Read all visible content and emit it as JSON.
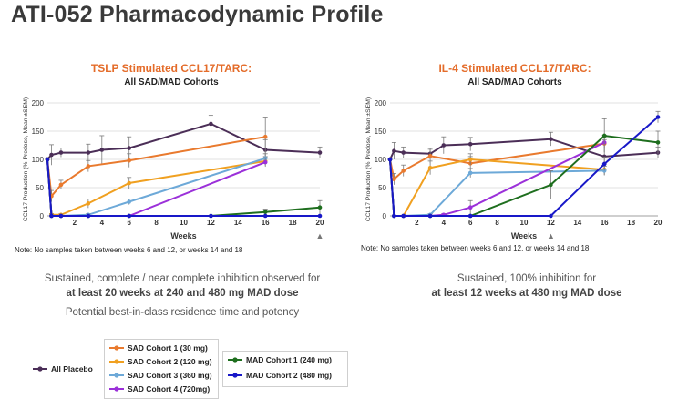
{
  "title": "ATI-052 Pharmacodynamic Profile",
  "colors": {
    "orange_title": "#e46c2a",
    "placebo": "#4b2e57",
    "sad1": "#e97a2e",
    "sad2": "#f0a020",
    "sad3": "#6da9d8",
    "sad4": "#9b30d9",
    "mad1": "#1e6e1e",
    "mad2": "#1818c8"
  },
  "left_panel": {
    "title": "TSLP Stimulated CCL17/TARC:",
    "subtitle": "All SAD/MAD Cohorts",
    "note": "Note: No samples taken between weeks 6 and 12, or weeks 14 and 18",
    "summary_line1": "Sustained, complete / near complete inhibition observed for",
    "summary_line2": "at least 20 weeks at 240 and 480 mg MAD dose",
    "summary_line3": "Potential best-in-class residence time and potency"
  },
  "right_panel": {
    "title": "IL-4 Stimulated CCL17/TARC:",
    "subtitle": "All SAD/MAD Cohorts",
    "note": "Note: No samples taken between weeks 6 and 12, or weeks 14 and 18",
    "summary_line1": "Sustained, 100% inhibition for",
    "summary_line2": "at least 12 weeks at 480 mg MAD dose"
  },
  "legend": {
    "placebo": "All Placebo",
    "sad1": "SAD Cohort 1 (30 mg)",
    "sad2": "SAD Cohort 2 (120 mg)",
    "sad3": "SAD Cohort 3 (360 mg)",
    "sad4": "SAD Cohort 4 (720mg)",
    "mad1": "MAD Cohort 1 (240 mg)",
    "mad2": "MAD Cohort 2 (480 mg)"
  },
  "chart_data": [
    {
      "type": "line",
      "title": "TSLP Stimulated CCL17/TARC:",
      "subtitle": "All SAD/MAD Cohorts",
      "xlabel": "Weeks",
      "ylabel": "CCL17 Production (% Predose, Mean ±SEM)",
      "xlim": [
        0,
        20
      ],
      "ylim": [
        0,
        200
      ],
      "xticks": [
        2,
        4,
        6,
        8,
        10,
        12,
        14,
        16,
        18,
        20
      ],
      "yticks": [
        0,
        50,
        100,
        150,
        200
      ],
      "x_marker_week": 20,
      "x_marker_symbol": "▲",
      "series": [
        {
          "name": "All Placebo",
          "key": "placebo",
          "x": [
            0,
            0.3,
            1,
            3,
            4,
            6,
            12,
            16,
            20
          ],
          "y": [
            100,
            108,
            112,
            112,
            117,
            120,
            163,
            117,
            112
          ],
          "err": [
            0,
            18,
            8,
            15,
            25,
            20,
            15,
            18,
            10
          ]
        },
        {
          "name": "SAD Cohort 1 (30 mg)",
          "key": "sad1",
          "x": [
            0,
            0.3,
            1,
            3,
            6,
            16
          ],
          "y": [
            100,
            35,
            55,
            88,
            98,
            140
          ],
          "err": [
            0,
            10,
            8,
            10,
            12,
            35
          ]
        },
        {
          "name": "SAD Cohort 2 (120 mg)",
          "key": "sad2",
          "x": [
            0,
            0.3,
            1,
            3,
            6,
            16
          ],
          "y": [
            100,
            2,
            2,
            22,
            58,
            97
          ],
          "err": [
            0,
            2,
            2,
            8,
            10,
            8
          ]
        },
        {
          "name": "SAD Cohort 3 (360 mg)",
          "key": "sad3",
          "x": [
            0,
            0.3,
            1,
            3,
            6,
            16
          ],
          "y": [
            100,
            0,
            0,
            2,
            25,
            102
          ],
          "err": [
            0,
            0,
            0,
            2,
            5,
            8
          ]
        },
        {
          "name": "SAD Cohort 4 (720mg)",
          "key": "sad4",
          "x": [
            0,
            0.3,
            1,
            3,
            6,
            16
          ],
          "y": [
            100,
            0,
            0,
            0,
            0,
            95
          ],
          "err": [
            0,
            0,
            0,
            0,
            0,
            8
          ]
        },
        {
          "name": "MAD Cohort 1 (240 mg)",
          "key": "mad1",
          "x": [
            0,
            0.3,
            1,
            3,
            6,
            12,
            16,
            20
          ],
          "y": [
            100,
            0,
            0,
            0,
            0,
            0,
            7,
            15
          ],
          "err": [
            0,
            0,
            0,
            0,
            0,
            0,
            5,
            12
          ]
        },
        {
          "name": "MAD Cohort 2 (480 mg)",
          "key": "mad2",
          "x": [
            0,
            0.3,
            1,
            3,
            6,
            12,
            16,
            20
          ],
          "y": [
            100,
            0,
            0,
            0,
            0,
            0,
            0,
            0
          ],
          "err": [
            0,
            0,
            0,
            0,
            0,
            0,
            0,
            0
          ]
        }
      ]
    },
    {
      "type": "line",
      "title": "IL-4 Stimulated CCL17/TARC:",
      "subtitle": "All SAD/MAD Cohorts",
      "xlabel": "Weeks",
      "ylabel": "CCL17 Production (% Predose, Mean ±SEM)",
      "xlim": [
        0,
        20
      ],
      "ylim": [
        0,
        200
      ],
      "xticks": [
        2,
        4,
        6,
        8,
        10,
        12,
        14,
        16,
        18,
        20
      ],
      "yticks": [
        0,
        50,
        100,
        150,
        200
      ],
      "x_marker_week": 12,
      "x_marker_symbol": "▲",
      "series": [
        {
          "name": "All Placebo",
          "key": "placebo",
          "x": [
            0,
            0.3,
            1,
            3,
            4,
            6,
            12,
            16,
            20
          ],
          "y": [
            100,
            115,
            112,
            110,
            125,
            127,
            136,
            105,
            112
          ],
          "err": [
            0,
            15,
            10,
            10,
            15,
            12,
            12,
            30,
            10
          ]
        },
        {
          "name": "SAD Cohort 1 (30 mg)",
          "key": "sad1",
          "x": [
            0,
            0.3,
            1,
            3,
            6,
            16
          ],
          "y": [
            100,
            65,
            80,
            106,
            93,
            128
          ],
          "err": [
            0,
            10,
            10,
            12,
            12,
            15
          ]
        },
        {
          "name": "SAD Cohort 2 (120 mg)",
          "key": "sad2",
          "x": [
            0,
            0.3,
            1,
            3,
            6,
            16
          ],
          "y": [
            100,
            0,
            0,
            85,
            100,
            82
          ],
          "err": [
            0,
            0,
            0,
            12,
            10,
            10
          ]
        },
        {
          "name": "SAD Cohort 3 (360 mg)",
          "key": "sad3",
          "x": [
            0,
            0.3,
            1,
            3,
            6,
            16
          ],
          "y": [
            100,
            0,
            0,
            2,
            76,
            80
          ],
          "err": [
            0,
            0,
            0,
            2,
            8,
            8
          ]
        },
        {
          "name": "SAD Cohort 4 (720mg)",
          "key": "sad4",
          "x": [
            0,
            0.3,
            1,
            3,
            4,
            6,
            16
          ],
          "y": [
            100,
            0,
            0,
            0,
            2,
            15,
            130
          ],
          "err": [
            0,
            0,
            0,
            0,
            2,
            12,
            10
          ]
        },
        {
          "name": "MAD Cohort 1 (240 mg)",
          "key": "mad1",
          "x": [
            0,
            0.3,
            1,
            3,
            6,
            12,
            16,
            20
          ],
          "y": [
            100,
            0,
            0,
            0,
            0,
            55,
            142,
            130
          ],
          "err": [
            0,
            0,
            0,
            0,
            0,
            25,
            30,
            20
          ]
        },
        {
          "name": "MAD Cohort 2 (480 mg)",
          "key": "mad2",
          "x": [
            0,
            0.3,
            1,
            3,
            6,
            12,
            16,
            20
          ],
          "y": [
            100,
            0,
            0,
            0,
            0,
            0,
            92,
            175
          ],
          "err": [
            0,
            0,
            0,
            0,
            0,
            0,
            12,
            10
          ]
        }
      ]
    }
  ]
}
